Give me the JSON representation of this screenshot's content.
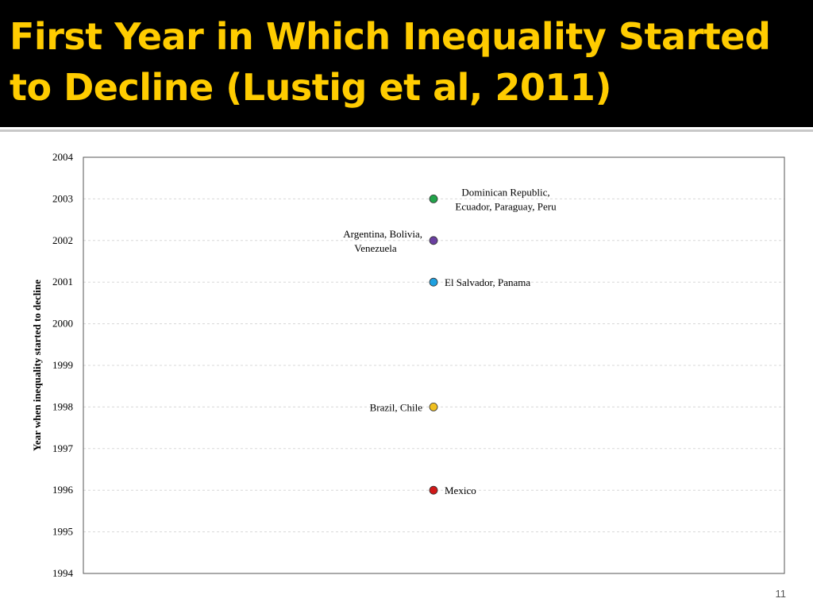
{
  "slide": {
    "title": "First Year in Which Inequality Started to Decline (Lustig et al, 2011)",
    "number": "11"
  },
  "colors": {
    "title_background": "#000000",
    "title_text": "#ffcc00"
  },
  "chart_data": {
    "type": "scatter",
    "title": "",
    "xlabel": "",
    "ylabel": "Year when inequality started to decline",
    "ylim": [
      1994,
      2004
    ],
    "yticks": [
      "1994",
      "1995",
      "1996",
      "1997",
      "1998",
      "1999",
      "2000",
      "2001",
      "2002",
      "2003",
      "2004"
    ],
    "grid": true,
    "points": [
      {
        "y": 2003,
        "label": "Dominican Republic,|Ecuador, Paraguay, Peru",
        "side": "right",
        "color": "#22a34a"
      },
      {
        "y": 2002,
        "label": "Argentina, Bolivia,|Venezuela",
        "side": "left",
        "color": "#6a3fa0"
      },
      {
        "y": 2001,
        "label": "El Salvador, Panama",
        "side": "right",
        "color": "#1ea0e0"
      },
      {
        "y": 1998,
        "label": "Brazil, Chile",
        "side": "left",
        "color": "#f0c020"
      },
      {
        "y": 1996,
        "label": "Mexico",
        "side": "right",
        "color": "#d01818"
      }
    ]
  }
}
